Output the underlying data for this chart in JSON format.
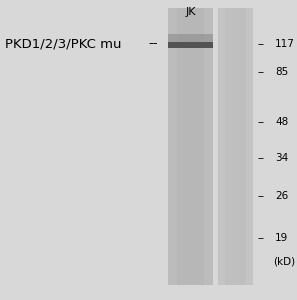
{
  "fig_bg": "#d8d8d8",
  "panel_bg": "#d8d8d8",
  "lane1_color": "#b8b8b8",
  "lane1_dark": "#909090",
  "lane2_color": "#c0c0c0",
  "band_color": "#505050",
  "band_color_top": "#707070",
  "label_text": "PKD1/2/3/PKC mu",
  "label_fontsize": 9.5,
  "jk_label": "JK",
  "jk_fontsize": 8,
  "mw_markers": [
    117,
    85,
    48,
    34,
    26,
    19
  ],
  "mw_fontsize": 7.5,
  "kd_label": "(kD)",
  "arrow_dashes": "--"
}
